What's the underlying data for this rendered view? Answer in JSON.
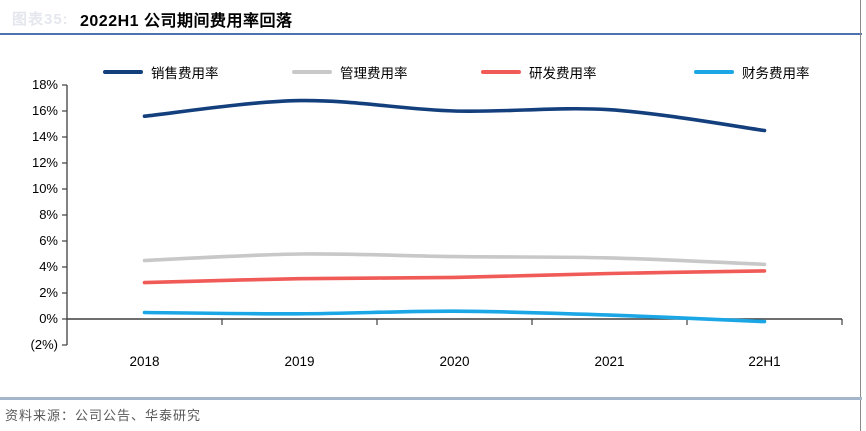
{
  "page": {
    "faded_label": "图表35:",
    "title": "2022H1 公司期间费用率回落",
    "source_note": "资料来源：公司公告、华泰研究"
  },
  "colors": {
    "title_rule": "#4f71ad",
    "footer_rule": "#a6b6ca",
    "right_border": "#8a8a8a",
    "axis": "#3f3f3f"
  },
  "chart_data": {
    "type": "line",
    "title": "2022H1 公司期间费用率回落",
    "categories": [
      "2018",
      "2019",
      "2020",
      "2021",
      "22H1"
    ],
    "series": [
      {
        "name": "销售费用率",
        "color": "#143f7d",
        "values": [
          15.6,
          16.8,
          16.0,
          16.1,
          14.5
        ]
      },
      {
        "name": "管理费用率",
        "color": "#c8c8c8",
        "values": [
          4.5,
          5.0,
          4.8,
          4.7,
          4.2
        ]
      },
      {
        "name": "研发费用率",
        "color": "#f05b57",
        "values": [
          2.8,
          3.1,
          3.2,
          3.5,
          3.7
        ]
      },
      {
        "name": "财务费用率",
        "color": "#1ba6e6",
        "values": [
          0.5,
          0.4,
          0.6,
          0.3,
          -0.2
        ]
      }
    ],
    "xlabel": "",
    "ylabel": "",
    "ylim": [
      -2,
      18
    ],
    "y_tick_step": 2,
    "y_tick_labels": [
      "18%",
      "16%",
      "14%",
      "12%",
      "10%",
      "8%",
      "6%",
      "4%",
      "2%",
      "0%",
      "(2%)"
    ],
    "legend_position": "top",
    "grid": false,
    "line_style": "smooth"
  }
}
